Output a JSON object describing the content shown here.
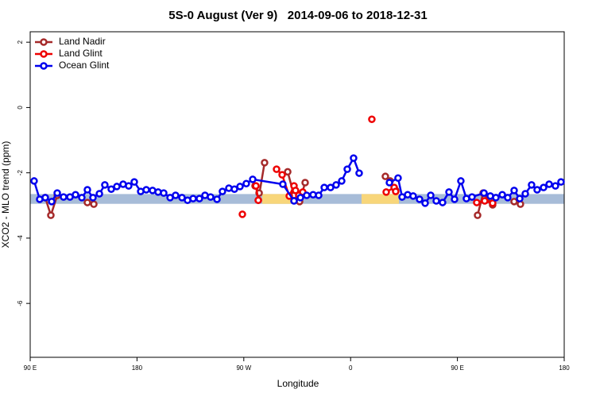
{
  "chart_data": {
    "type": "line",
    "title": "5S-0 August (Ver 9)   2014-09-06 to 2018-12-31",
    "x_label": "Longitude",
    "y_label": "XCO2 - MLO trend (ppm)",
    "xlim": [
      90,
      540
    ],
    "xticks": [
      {
        "value": 90,
        "label": "90 E"
      },
      {
        "value": 180,
        "label": "180"
      },
      {
        "value": 270,
        "label": "90 W"
      },
      {
        "value": 360,
        "label": "0"
      },
      {
        "value": 450,
        "label": "90 E"
      },
      {
        "value": 540,
        "label": "180"
      }
    ],
    "ylim": [
      -7.65,
      2.32
    ],
    "yticks": [
      -6,
      -4,
      -2,
      0,
      2
    ],
    "legend": "top-left",
    "band": {
      "ymin": -2.95,
      "ymax": -2.65,
      "color": "#a7bcd8",
      "highlight_color": "#f8d67a",
      "highlights": [
        [
          285.5,
          312.3
        ],
        [
          369.2,
          400.7
        ]
      ]
    },
    "series": [
      {
        "name": "Land Nadir",
        "color": "#a52a2a",
        "x": [
          102.7,
          107.4,
          112.8,
          null,
          138.2,
          143.6,
          null,
          279.5,
          282.9,
          282.2,
          287.5,
          null,
          307.0,
          312.3,
          317.0,
          321.7,
          null,
          389.3,
          393.3,
          398.0,
          null,
          467.0,
          471.7,
          479.7,
          null,
          497.8,
          503.1
        ],
        "values": [
          -2.76,
          -3.3,
          -2.69,
          null,
          -2.91,
          -2.96,
          null,
          -2.4,
          -2.62,
          -2.84,
          -1.69,
          null,
          -1.97,
          -2.69,
          -2.88,
          -2.3,
          null,
          -2.11,
          -2.25,
          -2.54,
          null,
          -3.3,
          -2.62,
          -2.98,
          null,
          -2.88,
          -2.96
        ]
      },
      {
        "name": "Land Glint",
        "color": "#ee0000",
        "x": [
          268.8,
          null,
          280.2,
          282.2,
          null,
          297.6,
          302.3,
          308.3,
          312.3,
          313.6,
          316.3,
          319.7,
          null,
          377.9,
          null,
          390.0,
          396.7,
          398.0,
          null,
          466.3,
          473.0,
          479.7
        ],
        "values": [
          -3.27,
          null,
          -2.4,
          -2.84,
          null,
          -1.89,
          -2.06,
          -2.71,
          -2.4,
          -2.54,
          -2.69,
          -2.59,
          null,
          -0.36,
          null,
          -2.59,
          -2.45,
          -2.57,
          null,
          -2.91,
          -2.86,
          -2.93
        ]
      },
      {
        "name": "Ocean Glint",
        "color": "#0000ee",
        "x": [
          93.3,
          98.0,
          102.7,
          108.1,
          112.8,
          118.1,
          123.5,
          128.2,
          133.5,
          138.2,
          142.9,
          148.3,
          152.9,
          158.3,
          163.0,
          168.3,
          173.0,
          177.7,
          183.1,
          187.8,
          193.1,
          197.8,
          202.5,
          207.9,
          212.5,
          217.9,
          222.6,
          227.3,
          232.6,
          237.3,
          242.0,
          247.4,
          252.0,
          257.4,
          262.1,
          266.8,
          272.1,
          277.5,
          302.9,
          312.3,
          317.7,
          323.0,
          328.4,
          333.1,
          337.8,
          343.1,
          347.8,
          352.5,
          357.2,
          362.5,
          367.2,
          null,
          392.7,
          400.0,
          403.4,
          408.1,
          412.7,
          418.1,
          422.8,
          427.5,
          432.2,
          437.5,
          442.9,
          447.6,
          452.9,
          457.6,
          462.3,
          472.4,
          477.7,
          482.4,
          487.8,
          492.4,
          497.8,
          502.5,
          507.2,
          512.5,
          517.2,
          522.6,
          527.3,
          532.6,
          537.3
        ],
        "values": [
          -2.25,
          -2.81,
          -2.76,
          -2.88,
          -2.62,
          -2.74,
          -2.74,
          -2.67,
          -2.76,
          -2.52,
          -2.76,
          -2.64,
          -2.37,
          -2.5,
          -2.42,
          -2.35,
          -2.4,
          -2.28,
          -2.57,
          -2.52,
          -2.54,
          -2.59,
          -2.62,
          -2.76,
          -2.69,
          -2.76,
          -2.84,
          -2.79,
          -2.79,
          -2.69,
          -2.74,
          -2.81,
          -2.57,
          -2.47,
          -2.5,
          -2.42,
          -2.33,
          -2.2,
          -2.35,
          -2.86,
          -2.76,
          -2.69,
          -2.67,
          -2.69,
          -2.45,
          -2.45,
          -2.37,
          -2.25,
          -1.89,
          -1.55,
          -2.01,
          null,
          -2.3,
          -2.16,
          -2.74,
          -2.67,
          -2.71,
          -2.81,
          -2.93,
          -2.69,
          -2.86,
          -2.91,
          -2.59,
          -2.81,
          -2.25,
          -2.79,
          -2.74,
          -2.62,
          -2.71,
          -2.76,
          -2.67,
          -2.76,
          -2.54,
          -2.79,
          -2.64,
          -2.37,
          -2.52,
          -2.45,
          -2.35,
          -2.4,
          -2.28
        ]
      }
    ]
  }
}
